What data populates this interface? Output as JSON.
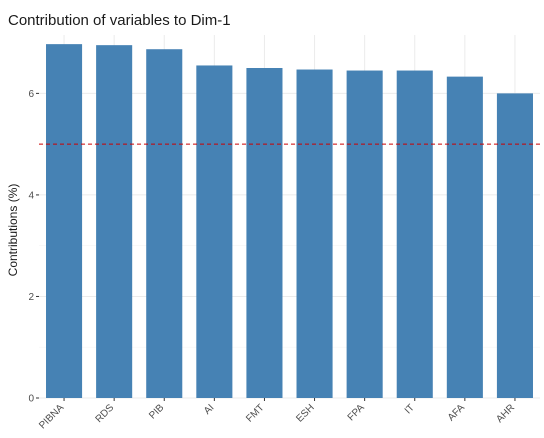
{
  "chart_data": {
    "type": "bar",
    "title": "Contribution of variables to Dim-1",
    "xlabel": "",
    "ylabel": "Contributions (%)",
    "categories": [
      "PIBNA",
      "RDS",
      "PIB",
      "AI",
      "FMT",
      "ESH",
      "FPA",
      "IT",
      "AFA",
      "AHR"
    ],
    "values": [
      6.97,
      6.95,
      6.87,
      6.55,
      6.5,
      6.47,
      6.45,
      6.45,
      6.33,
      6.0
    ],
    "ylim": [
      0,
      7.15
    ],
    "yticks": [
      0,
      2,
      4,
      6
    ],
    "reference_line": 5,
    "grid": true,
    "colors": {
      "bar": "#4682b4",
      "reference_line": "#cc0000",
      "grid": "#ebebeb"
    }
  }
}
